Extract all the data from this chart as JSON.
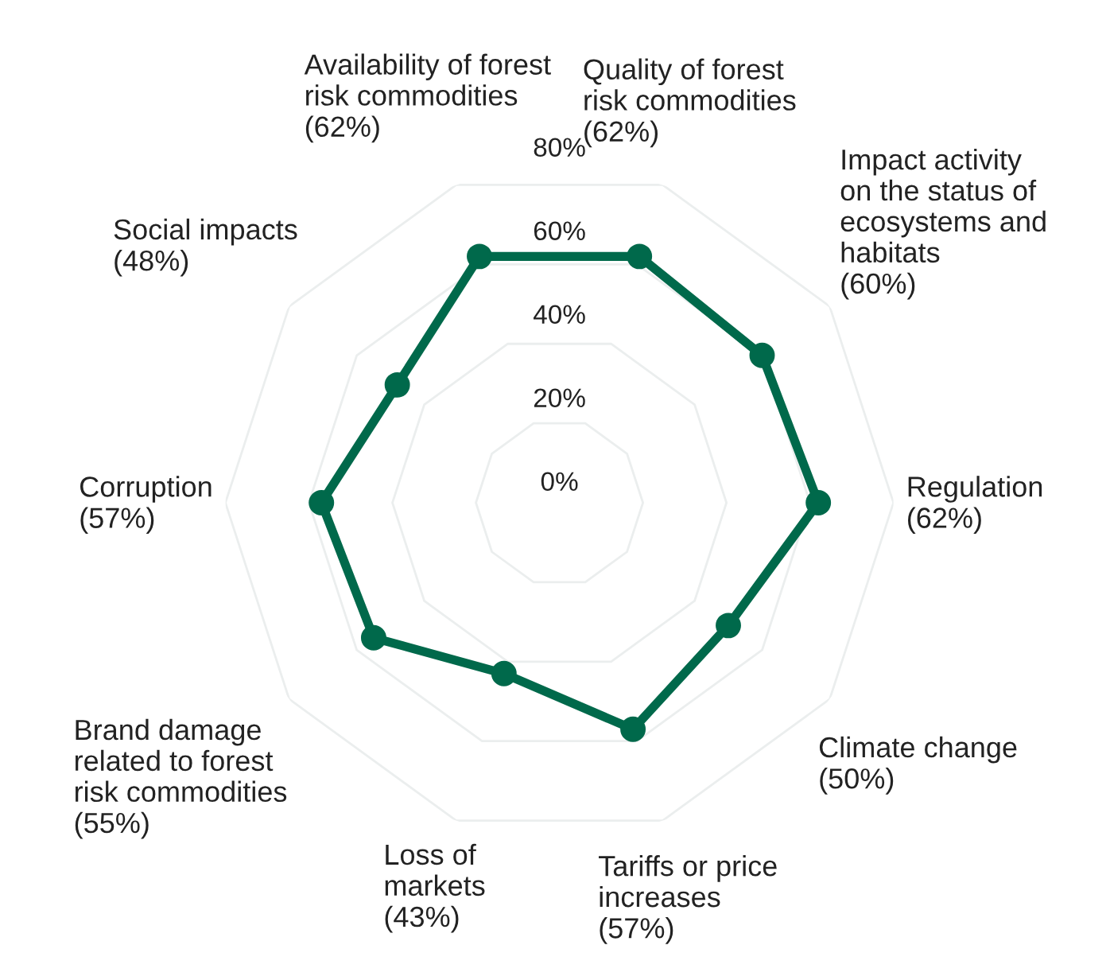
{
  "chart_data": {
    "type": "radar",
    "categories": [
      "Quality of forest\nrisk commodities",
      "Impact activity\non the status of\necosystems and\nhabitats",
      "Regulation",
      "Climate change",
      "Tariffs or price\nincreases",
      "Loss of\nmarkets",
      "Brand damage\nrelated to forest\nrisk commodities",
      "Corruption",
      "Social impacts",
      "Availability of forest\nrisk commodities"
    ],
    "series": [
      {
        "color": "#00694b",
        "values": [
          62,
          60,
          62,
          50,
          57,
          43,
          55,
          57,
          48,
          62
        ]
      }
    ],
    "ylim": [
      0,
      80
    ],
    "yticks": [
      {
        "value": 0,
        "label": "0%"
      },
      {
        "value": 20,
        "label": "20%"
      },
      {
        "value": 40,
        "label": "40%"
      },
      {
        "value": 60,
        "label": "60%"
      },
      {
        "value": 80,
        "label": "80%"
      }
    ],
    "value_labels": [
      "(62%)",
      "(60%)",
      "(62%)",
      "(50%)",
      "(57%)",
      "(43%)",
      "(55%)",
      "(57%)",
      "(48%)",
      "(62%)"
    ],
    "marker": "circle",
    "grid": true
  }
}
